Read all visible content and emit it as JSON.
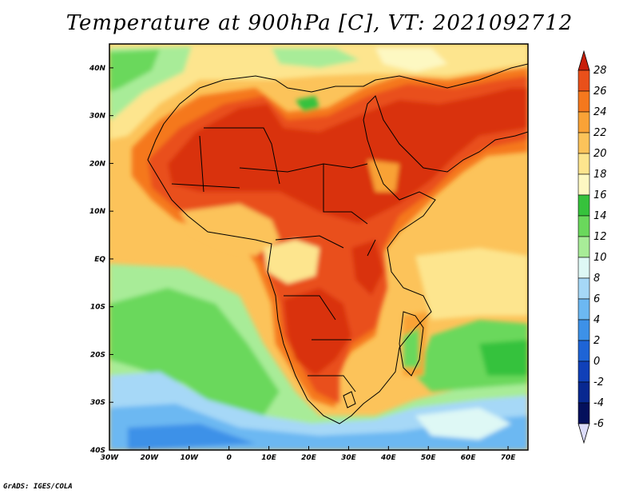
{
  "title": "Temperature at 900hPa [C], VT: 2021092712",
  "footer": "GrADS: IGES/COLA",
  "map": {
    "lon_range": [
      -30,
      75
    ],
    "lat_range": [
      -40,
      45
    ],
    "lat_ticks": [
      {
        "value": 40,
        "label": "40N"
      },
      {
        "value": 30,
        "label": "30N"
      },
      {
        "value": 20,
        "label": "20N"
      },
      {
        "value": 10,
        "label": "10N"
      },
      {
        "value": 0,
        "label": "EQ"
      },
      {
        "value": -10,
        "label": "10S"
      },
      {
        "value": -20,
        "label": "20S"
      },
      {
        "value": -30,
        "label": "30S"
      },
      {
        "value": -40,
        "label": "40S"
      }
    ],
    "lon_ticks": [
      {
        "value": -30,
        "label": "30W"
      },
      {
        "value": -20,
        "label": "20W"
      },
      {
        "value": -10,
        "label": "10W"
      },
      {
        "value": 0,
        "label": "0"
      },
      {
        "value": 10,
        "label": "10E"
      },
      {
        "value": 20,
        "label": "20E"
      },
      {
        "value": 30,
        "label": "30E"
      },
      {
        "value": 40,
        "label": "40E"
      },
      {
        "value": 50,
        "label": "50E"
      },
      {
        "value": 60,
        "label": "60E"
      },
      {
        "value": 70,
        "label": "70E"
      }
    ]
  },
  "colorbar": {
    "levels": [
      {
        "label": "28",
        "color": "#d9300f"
      },
      {
        "label": "26",
        "color": "#e9501a"
      },
      {
        "label": "24",
        "color": "#f5781d"
      },
      {
        "label": "22",
        "color": "#f9a236"
      },
      {
        "label": "20",
        "color": "#fcc35a"
      },
      {
        "label": "18",
        "color": "#fde58e"
      },
      {
        "label": "16",
        "color": "#fdf8c2"
      },
      {
        "label": "14",
        "color": "#36c23c"
      },
      {
        "label": "12",
        "color": "#6ad85c"
      },
      {
        "label": "10",
        "color": "#a8ec98"
      },
      {
        "label": "8",
        "color": "#def8f5"
      },
      {
        "label": "6",
        "color": "#a6d8f7"
      },
      {
        "label": "4",
        "color": "#6cb8f2"
      },
      {
        "label": "2",
        "color": "#3d91e8"
      },
      {
        "label": "0",
        "color": "#1e64d6"
      },
      {
        "label": "-2",
        "color": "#1040b8"
      },
      {
        "label": "-4",
        "color": "#082890"
      },
      {
        "label": "-6",
        "color": "#04105c"
      }
    ],
    "top_color": "#c81e0a",
    "bottom_color": "#dcdcfa"
  }
}
